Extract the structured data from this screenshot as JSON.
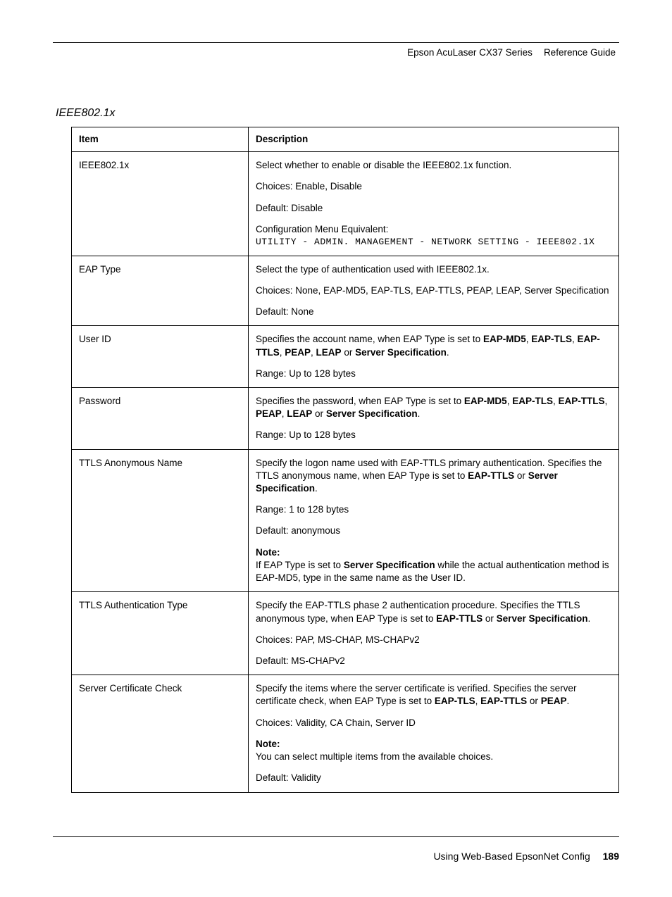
{
  "header": {
    "left": "Epson AcuLaser CX37 Series",
    "right": "Reference Guide"
  },
  "section_title": "IEEE802.1x",
  "table": {
    "head_item": "Item",
    "head_desc": "Description",
    "rows": [
      {
        "item": "IEEE802.1x",
        "paras": [
          {
            "text": "Select whether to enable or disable the IEEE802.1x function."
          },
          {
            "text": "Choices: Enable, Disable"
          },
          {
            "text": "Default: Disable"
          },
          {
            "text": "Configuration Menu Equivalent:",
            "mono_after": "UTILITY - ADMIN. MANAGEMENT - NETWORK SETTING - IEEE802.1X"
          }
        ]
      },
      {
        "item": "EAP Type",
        "paras": [
          {
            "text": "Select the type of authentication used with IEEE802.1x."
          },
          {
            "text": "Choices: None, EAP-MD5, EAP-TLS, EAP-TTLS, PEAP, LEAP, Server Specification"
          },
          {
            "text": "Default: None"
          }
        ]
      },
      {
        "item": "User ID",
        "paras": [
          {
            "html": "Specifies the account name, when EAP Type is set to <b>EAP-MD5</b>, <b>EAP-TLS</b>, <b>EAP-TTLS</b>, <b>PEAP</b>, <b>LEAP</b> or <b>Server Specification</b>."
          },
          {
            "text": "Range: Up to 128 bytes"
          }
        ]
      },
      {
        "item": "Password",
        "paras": [
          {
            "html": "Specifies the password, when EAP Type is set to <b>EAP-MD5</b>, <b>EAP-TLS</b>, <b>EAP-TTLS</b>, <b>PEAP</b>, <b>LEAP</b> or <b>Server Specification</b>."
          },
          {
            "text": "Range: Up to 128 bytes"
          }
        ]
      },
      {
        "item": "TTLS Anonymous Name",
        "paras": [
          {
            "html": "Specify the logon name used with EAP-TTLS primary authentication. Specifies the TTLS anonymous name, when EAP Type is set to <b>EAP-TTLS</b> or <b>Server Specification</b>."
          },
          {
            "text": "Range: 1 to 128 bytes"
          },
          {
            "text": "Default: anonymous"
          },
          {
            "html": "<b>Note:</b><br>If EAP Type is set to <b>Server Specification</b> while the actual authentication method is EAP-MD5, type in the same name as the User ID."
          }
        ]
      },
      {
        "item": "TTLS Authentication Type",
        "paras": [
          {
            "html": "Specify the EAP-TTLS phase 2 authentication procedure. Specifies the TTLS anonymous type, when EAP Type is set to <b>EAP-TTLS</b> or <b>Server Specification</b>."
          },
          {
            "text": "Choices: PAP, MS-CHAP, MS-CHAPv2"
          },
          {
            "text": "Default: MS-CHAPv2"
          }
        ]
      },
      {
        "item": "Server Certificate Check",
        "paras": [
          {
            "html": "Specify the items where the server certificate is verified. Specifies the server certificate check, when EAP Type is set to <b>EAP-TLS</b>, <b>EAP-TTLS</b> or <b>PEAP</b>."
          },
          {
            "text": "Choices: Validity, CA Chain, Server ID"
          },
          {
            "html": "<b>Note:</b><br>You can select multiple items from the available choices."
          },
          {
            "text": "Default: Validity"
          }
        ]
      }
    ]
  },
  "footer": {
    "text": "Using Web-Based EpsonNet Config",
    "page": "189"
  }
}
